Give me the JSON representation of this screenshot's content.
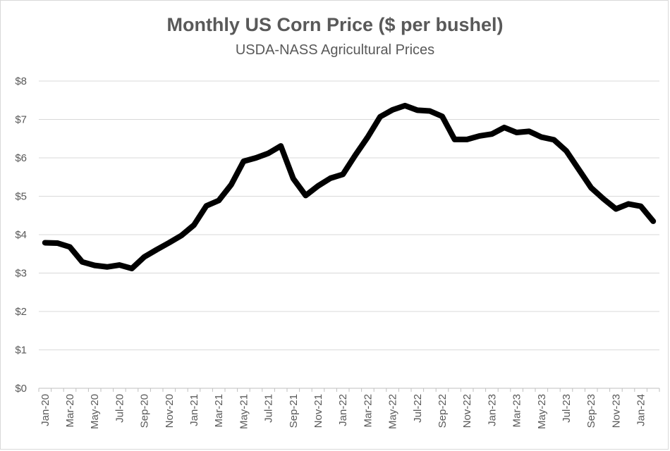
{
  "chart_data": {
    "type": "line",
    "title": "Monthly US Corn Price ($ per bushel)",
    "subtitle": "USDA-NASS Agricultural Prices",
    "xlabel": "",
    "ylabel": "",
    "ylim": [
      0,
      8
    ],
    "ytick_values": [
      0,
      1,
      2,
      3,
      4,
      5,
      6,
      7,
      8
    ],
    "ytick_labels": [
      "$0",
      "$1",
      "$2",
      "$3",
      "$4",
      "$5",
      "$6",
      "$7",
      "$8"
    ],
    "grid": true,
    "categories": [
      "Jan-20",
      "Feb-20",
      "Mar-20",
      "Apr-20",
      "May-20",
      "Jun-20",
      "Jul-20",
      "Aug-20",
      "Sep-20",
      "Oct-20",
      "Nov-20",
      "Dec-20",
      "Jan-21",
      "Feb-21",
      "Mar-21",
      "Apr-21",
      "May-21",
      "Jun-21",
      "Jul-21",
      "Aug-21",
      "Sep-21",
      "Oct-21",
      "Nov-21",
      "Dec-21",
      "Jan-22",
      "Feb-22",
      "Mar-22",
      "Apr-22",
      "May-22",
      "Jun-22",
      "Jul-22",
      "Aug-22",
      "Sep-22",
      "Oct-22",
      "Nov-22",
      "Dec-22",
      "Jan-23",
      "Feb-23",
      "Mar-23",
      "Apr-23",
      "May-23",
      "Jun-23",
      "Jul-23",
      "Aug-23",
      "Sep-23",
      "Oct-23",
      "Nov-23",
      "Dec-23",
      "Jan-24",
      "Feb-24"
    ],
    "xtick_labels": [
      "Jan-20",
      "Mar-20",
      "May-20",
      "Jul-20",
      "Sep-20",
      "Nov-20",
      "Jan-21",
      "Mar-21",
      "May-21",
      "Jul-21",
      "Sep-21",
      "Nov-21",
      "Jan-22",
      "Mar-22",
      "May-22",
      "Jul-22",
      "Sep-22",
      "Nov-22",
      "Jan-23",
      "Mar-23",
      "May-23",
      "Jul-23",
      "Sep-23",
      "Nov-23",
      "Jan-24"
    ],
    "series": [
      {
        "name": "Corn price",
        "color": "#000000",
        "values": [
          3.79,
          3.78,
          3.68,
          3.29,
          3.2,
          3.16,
          3.21,
          3.12,
          3.42,
          3.61,
          3.79,
          3.98,
          4.25,
          4.75,
          4.89,
          5.3,
          5.91,
          6.0,
          6.12,
          6.31,
          5.46,
          5.02,
          5.27,
          5.47,
          5.57,
          6.07,
          6.54,
          7.07,
          7.25,
          7.36,
          7.24,
          7.22,
          7.08,
          6.48,
          6.48,
          6.57,
          6.62,
          6.79,
          6.66,
          6.69,
          6.54,
          6.47,
          6.18,
          5.7,
          5.22,
          4.93,
          4.67,
          4.8,
          4.74,
          4.35
        ]
      }
    ]
  }
}
